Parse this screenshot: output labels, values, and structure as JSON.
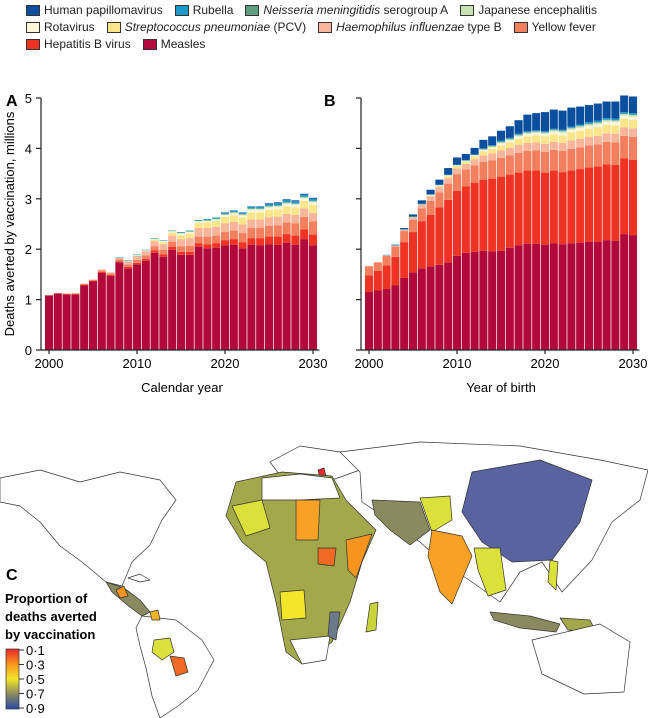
{
  "legend": [
    {
      "key": "hpv",
      "label": "Human papillomavirus",
      "color": "#0a4f9e"
    },
    {
      "key": "rubella",
      "label": "Rubella",
      "color": "#1d9ac8"
    },
    {
      "key": "mena",
      "label_italic": "Neisseria meningitidis",
      "label_rest": " serogroup A",
      "color": "#5f9e80"
    },
    {
      "key": "je",
      "label": "Japanese encephalitis",
      "color": "#c9e2b3"
    },
    {
      "key": "rota",
      "label": "Rotavirus",
      "color": "#fdf6d8"
    },
    {
      "key": "pcv",
      "label_italic": "Streptococcus pneumoniae",
      "label_rest": " (PCV)",
      "color": "#fbe58a"
    },
    {
      "key": "hib",
      "label_italic": "Haemophilus influenzae",
      "label_rest": " type B",
      "color": "#f9b59c"
    },
    {
      "key": "yf",
      "label": "Yellow fever",
      "color": "#f27f5e"
    },
    {
      "key": "hepb",
      "label": "Hepatitis B virus",
      "color": "#ee3224"
    },
    {
      "key": "measles",
      "label": "Measles",
      "color": "#b10a3a"
    }
  ],
  "chart_data": [
    {
      "panel": "A",
      "type": "bar",
      "stacked": true,
      "xlabel": "Calendar year",
      "ylabel": "Deaths averted by vaccination, millions",
      "ylim": [
        0,
        5
      ],
      "yticks": [
        "0",
        "1",
        "2",
        "3",
        "4",
        "5"
      ],
      "xticks": [
        "2000",
        "2010",
        "2020",
        "2030"
      ],
      "x": [
        2000,
        2001,
        2002,
        2003,
        2004,
        2005,
        2006,
        2007,
        2008,
        2009,
        2010,
        2011,
        2012,
        2013,
        2014,
        2015,
        2016,
        2017,
        2018,
        2019,
        2020,
        2021,
        2022,
        2023,
        2024,
        2025,
        2026,
        2027,
        2028,
        2029,
        2030
      ],
      "series": {
        "measles": [
          1.08,
          1.12,
          1.1,
          1.1,
          1.28,
          1.36,
          1.53,
          1.47,
          1.74,
          1.62,
          1.7,
          1.77,
          1.93,
          1.85,
          1.99,
          1.89,
          1.89,
          2.05,
          2.02,
          2.03,
          2.08,
          2.09,
          2.02,
          2.09,
          2.08,
          2.1,
          2.09,
          2.13,
          2.09,
          2.2,
          2.08
        ],
        "hepb": [
          0,
          0,
          0.01,
          0.01,
          0.01,
          0.01,
          0.02,
          0.02,
          0.02,
          0.03,
          0.03,
          0.04,
          0.05,
          0.05,
          0.06,
          0.06,
          0.06,
          0.07,
          0.08,
          0.09,
          0.1,
          0.11,
          0.12,
          0.13,
          0.14,
          0.15,
          0.16,
          0.17,
          0.18,
          0.19,
          0.21
        ],
        "yf": [
          0.01,
          0.01,
          0.01,
          0.01,
          0.02,
          0.02,
          0.03,
          0.03,
          0.04,
          0.05,
          0.06,
          0.07,
          0.08,
          0.09,
          0.1,
          0.11,
          0.12,
          0.13,
          0.15,
          0.15,
          0.16,
          0.17,
          0.18,
          0.2,
          0.2,
          0.21,
          0.22,
          0.23,
          0.24,
          0.25,
          0.26
        ],
        "hib": [
          0,
          0,
          0,
          0.01,
          0.01,
          0.01,
          0.02,
          0.02,
          0.03,
          0.06,
          0.08,
          0.08,
          0.1,
          0.11,
          0.12,
          0.14,
          0.15,
          0.17,
          0.17,
          0.17,
          0.17,
          0.17,
          0.17,
          0.17,
          0.17,
          0.17,
          0.17,
          0.17,
          0.17,
          0.17,
          0.17
        ],
        "pcv": [
          0,
          0,
          0,
          0,
          0,
          0,
          0,
          0,
          0,
          0.01,
          0.01,
          0.01,
          0.03,
          0.04,
          0.06,
          0.08,
          0.09,
          0.1,
          0.11,
          0.12,
          0.13,
          0.13,
          0.14,
          0.14,
          0.14,
          0.15,
          0.15,
          0.15,
          0.15,
          0.15,
          0.16
        ],
        "rota": [
          0,
          0,
          0,
          0,
          0,
          0,
          0,
          0,
          0,
          0,
          0.01,
          0.01,
          0.01,
          0.02,
          0.02,
          0.03,
          0.03,
          0.03,
          0.03,
          0.03,
          0.04,
          0.04,
          0.04,
          0.05,
          0.05,
          0.05,
          0.05,
          0.05,
          0.05,
          0.05,
          0.05
        ],
        "je": [
          0,
          0,
          0,
          0,
          0,
          0,
          0,
          0,
          0,
          0,
          0,
          0,
          0.01,
          0.01,
          0.01,
          0.01,
          0.01,
          0.01,
          0.01,
          0.01,
          0.01,
          0.02,
          0.02,
          0.02,
          0.02,
          0.02,
          0.02,
          0.02,
          0.02,
          0.02,
          0.02
        ],
        "mena": [
          0,
          0,
          0,
          0,
          0,
          0,
          0,
          0,
          0,
          0,
          0,
          0,
          0,
          0,
          0,
          0.01,
          0.01,
          0.01,
          0.01,
          0.01,
          0.01,
          0.01,
          0.01,
          0.01,
          0.01,
          0.01,
          0.01,
          0.01,
          0.01,
          0.01,
          0.01
        ],
        "rubella": [
          0,
          0,
          0,
          0,
          0,
          0,
          0,
          0,
          0.01,
          0.01,
          0.01,
          0.01,
          0.01,
          0.01,
          0.01,
          0.01,
          0.01,
          0.01,
          0.02,
          0.02,
          0.02,
          0.02,
          0.02,
          0.03,
          0.03,
          0.03,
          0.04,
          0.04,
          0.04,
          0.04,
          0.04
        ],
        "hpv": [
          0,
          0,
          0,
          0,
          0,
          0,
          0,
          0,
          0,
          0,
          0,
          0,
          0,
          0,
          0,
          0,
          0,
          0,
          0,
          0,
          0.01,
          0.01,
          0.01,
          0.01,
          0.01,
          0.02,
          0.02,
          0.02,
          0.02,
          0.02,
          0.02
        ]
      }
    },
    {
      "panel": "B",
      "type": "bar",
      "stacked": true,
      "xlabel": "Year of birth",
      "ylim": [
        0,
        5
      ],
      "xticks": [
        "2000",
        "2010",
        "2020",
        "2030"
      ],
      "x": [
        2000,
        2001,
        2002,
        2003,
        2004,
        2005,
        2006,
        2007,
        2008,
        2009,
        2010,
        2011,
        2012,
        2013,
        2014,
        2015,
        2016,
        2017,
        2018,
        2019,
        2020,
        2021,
        2022,
        2023,
        2024,
        2025,
        2026,
        2027,
        2028,
        2029,
        2030
      ],
      "series": {
        "measles": [
          1.15,
          1.18,
          1.21,
          1.28,
          1.43,
          1.54,
          1.62,
          1.66,
          1.69,
          1.74,
          1.87,
          1.93,
          1.95,
          1.97,
          1.96,
          1.97,
          2.03,
          2.08,
          2.11,
          2.11,
          2.09,
          2.12,
          2.1,
          2.12,
          2.13,
          2.15,
          2.15,
          2.18,
          2.17,
          2.3,
          2.28
        ],
        "hepb": [
          0.33,
          0.39,
          0.47,
          0.57,
          0.71,
          0.8,
          0.93,
          1.02,
          1.14,
          1.24,
          1.29,
          1.32,
          1.37,
          1.41,
          1.44,
          1.47,
          1.45,
          1.44,
          1.45,
          1.45,
          1.43,
          1.44,
          1.43,
          1.44,
          1.46,
          1.47,
          1.49,
          1.5,
          1.5,
          1.5,
          1.49
        ],
        "yf": [
          0.18,
          0.17,
          0.19,
          0.2,
          0.22,
          0.24,
          0.26,
          0.28,
          0.3,
          0.32,
          0.33,
          0.33,
          0.34,
          0.35,
          0.36,
          0.37,
          0.38,
          0.39,
          0.39,
          0.4,
          0.41,
          0.41,
          0.42,
          0.43,
          0.43,
          0.44,
          0.44,
          0.45,
          0.45,
          0.45,
          0.46
        ],
        "hib": [
          0.01,
          0,
          0.01,
          0.02,
          0.03,
          0.05,
          0.07,
          0.09,
          0.1,
          0.11,
          0.11,
          0.11,
          0.12,
          0.13,
          0.14,
          0.15,
          0.15,
          0.16,
          0.16,
          0.16,
          0.16,
          0.16,
          0.16,
          0.17,
          0.17,
          0.17,
          0.17,
          0.17,
          0.17,
          0.17,
          0.17
        ],
        "pcv": [
          0,
          0,
          0,
          0,
          0,
          0.01,
          0.01,
          0.02,
          0.03,
          0.04,
          0.05,
          0.05,
          0.06,
          0.08,
          0.09,
          0.1,
          0.11,
          0.12,
          0.13,
          0.14,
          0.15,
          0.15,
          0.15,
          0.16,
          0.16,
          0.16,
          0.17,
          0.17,
          0.17,
          0.17,
          0.17
        ],
        "rota": [
          0,
          0,
          0,
          0,
          0,
          0,
          0,
          0.01,
          0.01,
          0.01,
          0.01,
          0.01,
          0.02,
          0.03,
          0.03,
          0.04,
          0.04,
          0.05,
          0.05,
          0.05,
          0.05,
          0.05,
          0.05,
          0.05,
          0.06,
          0.06,
          0.06,
          0.06,
          0.06,
          0.06,
          0.06
        ],
        "je": [
          0,
          0,
          0,
          0,
          0,
          0,
          0,
          0,
          0,
          0.01,
          0.01,
          0.01,
          0.01,
          0.01,
          0.02,
          0.02,
          0.02,
          0.02,
          0.02,
          0.02,
          0.02,
          0.03,
          0.03,
          0.03,
          0.03,
          0.03,
          0.03,
          0.03,
          0.03,
          0.03,
          0.03
        ],
        "mena": [
          0,
          0,
          0,
          0,
          0,
          0,
          0,
          0,
          0,
          0,
          0,
          0,
          0,
          0.01,
          0.01,
          0.01,
          0.01,
          0.01,
          0.01,
          0.01,
          0.01,
          0.01,
          0.01,
          0.01,
          0.01,
          0.01,
          0.01,
          0.01,
          0.01,
          0.01,
          0.01
        ],
        "rubella": [
          0,
          0,
          0.01,
          0.01,
          0.01,
          0.01,
          0.01,
          0.01,
          0.01,
          0.01,
          0.01,
          0.01,
          0.01,
          0.01,
          0.01,
          0.02,
          0.02,
          0.02,
          0.02,
          0.02,
          0.02,
          0.02,
          0.02,
          0.02,
          0.02,
          0.03,
          0.03,
          0.03,
          0.03,
          0.03,
          0.03
        ],
        "hpv": [
          0,
          0,
          0,
          0.01,
          0.02,
          0.04,
          0.07,
          0.09,
          0.1,
          0.13,
          0.14,
          0.12,
          0.13,
          0.17,
          0.18,
          0.2,
          0.23,
          0.27,
          0.33,
          0.34,
          0.38,
          0.38,
          0.38,
          0.38,
          0.36,
          0.34,
          0.34,
          0.33,
          0.34,
          0.33,
          0.33
        ]
      }
    },
    {
      "panel": "C",
      "type": "choropleth-map",
      "colorbar": {
        "title": [
          "Proportion of",
          "deaths averted",
          "by vaccination"
        ],
        "ticks": [
          "0·1",
          "0·3",
          "0·5",
          "0·7",
          "0·9"
        ],
        "colors": [
          "#e8282a",
          "#f7941d",
          "#f2e52a",
          "#8a8a60",
          "#2a4aa8"
        ]
      }
    }
  ]
}
